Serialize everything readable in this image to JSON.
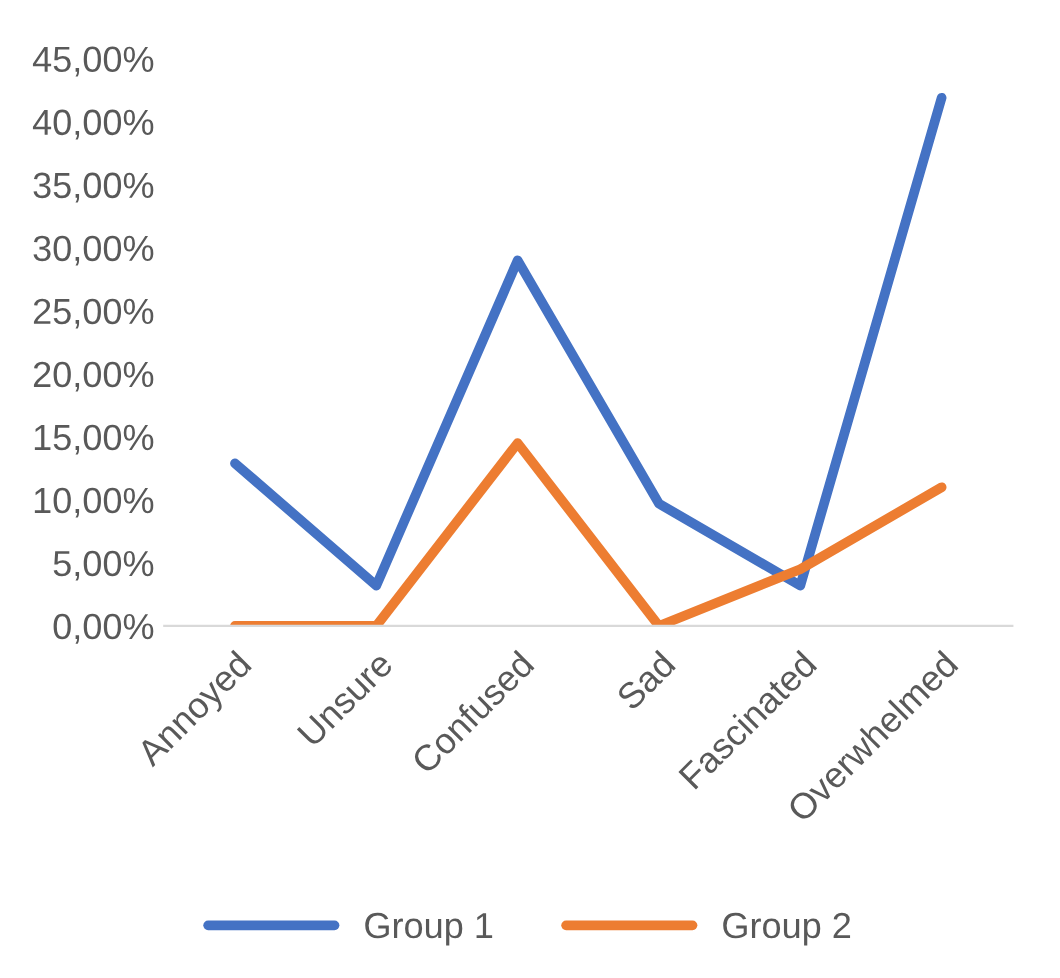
{
  "chart_data": {
    "type": "line",
    "categories": [
      "Annoyed",
      "Unsure",
      "Confused",
      "Sad",
      "Fascinated",
      "Overwhelmed"
    ],
    "series": [
      {
        "name": "Group 1",
        "color": "#4472c4",
        "values": [
          12.9,
          3.2,
          29.0,
          9.7,
          3.2,
          41.9
        ]
      },
      {
        "name": "Group 2",
        "color": "#ed7d31",
        "values": [
          0,
          0,
          14.5,
          0,
          4.5,
          11.0
        ]
      }
    ],
    "ylim": [
      0,
      45
    ],
    "yticks": [
      {
        "value": 0,
        "label": "0,00%"
      },
      {
        "value": 5,
        "label": "5,00%"
      },
      {
        "value": 10,
        "label": "10,00%"
      },
      {
        "value": 15,
        "label": "15,00%"
      },
      {
        "value": 20,
        "label": "20,00%"
      },
      {
        "value": 25,
        "label": "25,00%"
      },
      {
        "value": 30,
        "label": "30,00%"
      },
      {
        "value": 35,
        "label": "35,00%"
      },
      {
        "value": 40,
        "label": "40,00%"
      },
      {
        "value": 45,
        "label": "45,00%"
      }
    ],
    "grid": false,
    "legend": "bottom",
    "marker": "none",
    "line_style": "solid"
  }
}
